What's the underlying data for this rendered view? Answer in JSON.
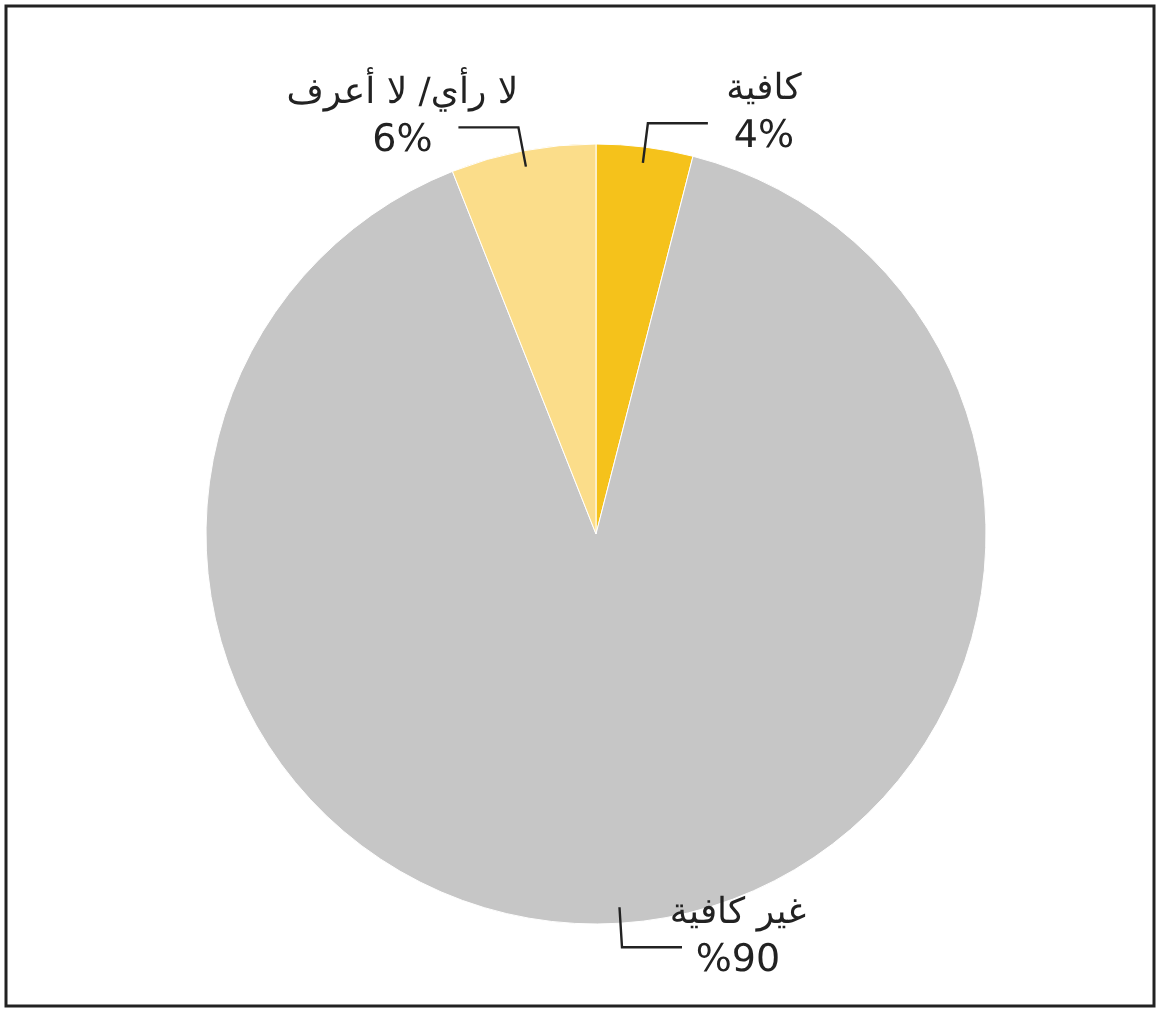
{
  "chart_data": {
    "type": "pie",
    "categories": [
      "كافية",
      "غير كافية",
      "لا رأي/ لا أعرف"
    ],
    "values": [
      4,
      90,
      6
    ],
    "colors": [
      "#f5c21b",
      "#c6c6c6",
      "#fbdd8a"
    ],
    "value_labels": [
      "4%",
      "%90",
      "6%"
    ]
  }
}
